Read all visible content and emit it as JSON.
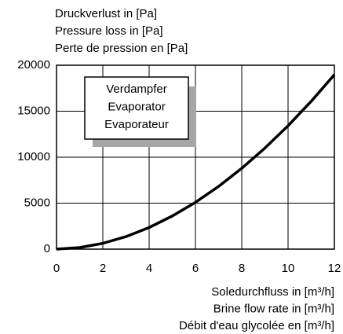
{
  "chart_data": {
    "type": "line",
    "title": [
      "Druckverlust in [Pa]",
      "Pressure loss in [Pa]",
      "Perte de pression en [Pa]"
    ],
    "x_label": [
      "Soledurchfluss in [m³/h]",
      "Brine flow rate in [m³/h]",
      "Débit d'eau glycolée en [m³/h]"
    ],
    "annotation": [
      "Verdampfer",
      "Evaporator",
      "Evaporateur"
    ],
    "x": [
      0,
      1,
      2,
      3,
      4,
      5,
      6,
      7,
      8,
      9,
      10,
      11,
      12
    ],
    "series": [
      {
        "color": "#000000",
        "values": [
          0,
          169,
          630,
          1360,
          2350,
          3600,
          5090,
          6820,
          8790,
          10990,
          13420,
          16080,
          18970
        ]
      }
    ],
    "xlim": [
      0,
      12
    ],
    "xticks": [
      0,
      2,
      4,
      6,
      8,
      10,
      12
    ],
    "ylim": [
      0,
      20000
    ],
    "yticks": [
      0,
      5000,
      10000,
      15000,
      20000
    ],
    "grid": true
  }
}
